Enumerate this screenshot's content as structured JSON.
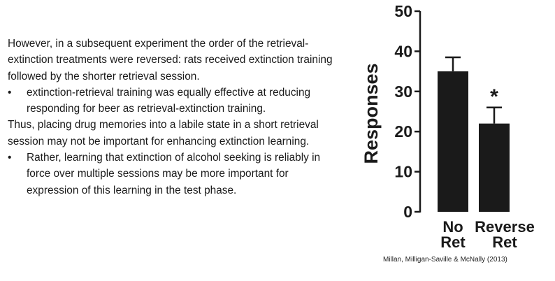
{
  "slide": {
    "para1": "However, in a subsequent experiment the order of the retrieval-extinction treatments were reversed: rats received extinction training followed by the shorter retrieval session.",
    "bullet1": "extinction-retrieval training was equally effective at reducing responding for beer as retrieval-extinction training.",
    "para2": "Thus, placing drug memories into a labile state in a short retrieval session may not be important for enhancing extinction learning.",
    "bullet2": "Rather, learning that extinction of alcohol seeking is reliably in force over multiple sessions may be more important for expression of this learning in the test phase.",
    "bullet_symbol": "•",
    "citation": "Millan, Milligan-Saville & McNally (2013)"
  },
  "chart_data": {
    "type": "bar",
    "categories": [
      [
        "No",
        "Ret"
      ],
      [
        "Reverse",
        "Ret"
      ]
    ],
    "values": [
      35,
      22
    ],
    "errors": [
      3.5,
      4
    ],
    "annotations": [
      "",
      "*"
    ],
    "ylabel": "Responses",
    "ylim": [
      0,
      50
    ],
    "yticks": [
      0,
      10,
      20,
      30,
      40,
      50
    ],
    "grid": false,
    "bar_color": "#1a1a1a"
  }
}
